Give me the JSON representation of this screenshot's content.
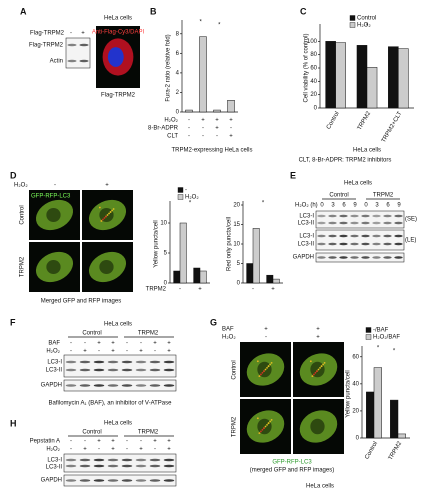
{
  "chart_data": [
    {
      "type": "bar",
      "y_label": "Fura-2 ratio (relative fold)",
      "values": [
        0.2,
        7.7,
        0.2,
        1.2
      ],
      "color": "#cccccc",
      "ylim": [
        0,
        9
      ],
      "yticks": [
        0,
        2,
        4,
        6,
        8
      ],
      "annotations": [
        "*",
        "*"
      ]
    },
    {
      "type": "bar",
      "y_label": "Cell viability (% of control)",
      "x_label": "HeLa cells",
      "categories": [
        "Control",
        "TRPM2",
        "TRPM2+CLT"
      ],
      "series": [
        {
          "name": "Control",
          "color": "#111111",
          "values": [
            100,
            94,
            92
          ]
        },
        {
          "name": "H₂O₂",
          "color": "#cccccc",
          "values": [
            98,
            61,
            89
          ]
        }
      ],
      "ylim": [
        0,
        120
      ],
      "yticks": [
        0,
        20,
        40,
        60,
        80,
        100
      ],
      "annotations": [
        "*"
      ]
    },
    {
      "type": "bar",
      "y_label": "Yellow puncta/cell",
      "x_label": "TRPM2",
      "categories": [
        "-",
        "+"
      ],
      "series": [
        {
          "name": "-",
          "color": "#111111",
          "values": [
            2,
            2.5
          ]
        },
        {
          "name": "H₂O₂",
          "color": "#cccccc",
          "values": [
            10,
            2
          ]
        }
      ],
      "ylim": [
        0,
        13
      ],
      "yticks": [
        0,
        5,
        10
      ],
      "annotations": [
        "*"
      ]
    },
    {
      "type": "bar",
      "y_label": "Red only puncta/cell",
      "categories": [
        "-",
        "+"
      ],
      "series": [
        {
          "name": "-",
          "color": "#111111",
          "values": [
            5,
            2
          ]
        },
        {
          "name": "H₂O₂",
          "color": "#cccccc",
          "values": [
            14,
            1
          ]
        }
      ],
      "ylim": [
        0,
        20
      ],
      "yticks": [
        0,
        5,
        10,
        15,
        20
      ],
      "annotations": [
        "*"
      ]
    },
    {
      "type": "bar",
      "y_label": "Yellow puncta/cell",
      "categories": [
        "Control",
        "TRPM2"
      ],
      "series": [
        {
          "name": "-/BAF",
          "color": "#111111",
          "values": [
            34,
            28
          ]
        },
        {
          "name": "H₂O₂/BAF",
          "color": "#cccccc",
          "values": [
            52,
            3
          ]
        }
      ],
      "ylim": [
        0,
        65
      ],
      "yticks": [
        0,
        20,
        40,
        60
      ],
      "annotations": [
        "*",
        "*"
      ]
    }
  ],
  "panels": {
    "A": {
      "label": "A",
      "title": "HeLa cells",
      "blot_header": "Flag-TRPM2",
      "blot_signs": [
        "-",
        "+"
      ],
      "bands": [
        "Flag-TRPM2",
        "Actin"
      ],
      "stain": "Anti-Flag-Cy3/DAPI",
      "image_caption": "Flag-TRPM2"
    },
    "B": {
      "label": "B",
      "conditions": [
        {
          "name": "H₂O₂",
          "signs": [
            "-",
            "+",
            "+",
            "+"
          ]
        },
        {
          "name": "8-Br-ADPR",
          "signs": [
            "-",
            "-",
            "+",
            "-"
          ]
        },
        {
          "name": "CLT",
          "signs": [
            "-",
            "-",
            "-",
            "+"
          ]
        }
      ],
      "caption": "TRPM2-expressing HeLa cells"
    },
    "C": {
      "label": "C",
      "footnote": "CLT, 8-Br-ADPR: TRPM2 inhibitors"
    },
    "D": {
      "label": "D",
      "treatment": "H₂O₂",
      "treatment_signs": [
        "-",
        "+"
      ],
      "stain": "GFP-RFP-LC3",
      "rows": [
        "Control",
        "TRPM2"
      ],
      "caption": "Merged GFP and RFP images"
    },
    "E": {
      "label": "E",
      "title": "HeLa cells",
      "groups": [
        "Control",
        "TRPM2"
      ],
      "time_label": "H₂O₂ (h)",
      "times": [
        "0",
        "3",
        "6",
        "9",
        "0",
        "3",
        "6",
        "9"
      ],
      "bands": [
        "LC3-I",
        "LC3-II",
        "LC3-I",
        "LC3-II",
        "GAPDH"
      ],
      "exposures": [
        "(SE)",
        "(LE)"
      ]
    },
    "F": {
      "label": "F",
      "title": "HeLa cells",
      "groups": [
        "Control",
        "TRPM2"
      ],
      "conditions": [
        {
          "name": "BAF",
          "signs": [
            "-",
            "-",
            "+",
            "+",
            "-",
            "-",
            "+",
            "+"
          ]
        },
        {
          "name": "H₂O₂",
          "signs": [
            "-",
            "+",
            "-",
            "+",
            "-",
            "+",
            "-",
            "+"
          ]
        }
      ],
      "bands": [
        "LC3-I",
        "LC3-II",
        "GAPDH"
      ],
      "caption": "Bafilomycin A₁ (BAF), an inhibitor of V-ATPase"
    },
    "G": {
      "label": "G",
      "conditions": [
        {
          "name": "BAF",
          "signs": [
            "+",
            "+"
          ]
        },
        {
          "name": "H₂O₂",
          "signs": [
            "-",
            "+"
          ]
        }
      ],
      "rows": [
        "Control",
        "TRPM2"
      ],
      "stain": "GFP-RFP-LC3",
      "stain_note": "(merged GFP and RFP images)",
      "caption": "HeLa cells"
    },
    "H": {
      "label": "H",
      "title": "HeLa cells",
      "groups": [
        "Control",
        "TRPM2"
      ],
      "conditions": [
        {
          "name": "Pepstatin A",
          "signs": [
            "-",
            "-",
            "+",
            "+",
            "-",
            "-",
            "+",
            "+"
          ]
        },
        {
          "name": "H₂O₂",
          "signs": [
            "-",
            "+",
            "-",
            "+",
            "-",
            "+",
            "-",
            "+"
          ]
        }
      ],
      "bands": [
        "LC3-I",
        "LC3-II",
        "GAPDH"
      ]
    }
  }
}
